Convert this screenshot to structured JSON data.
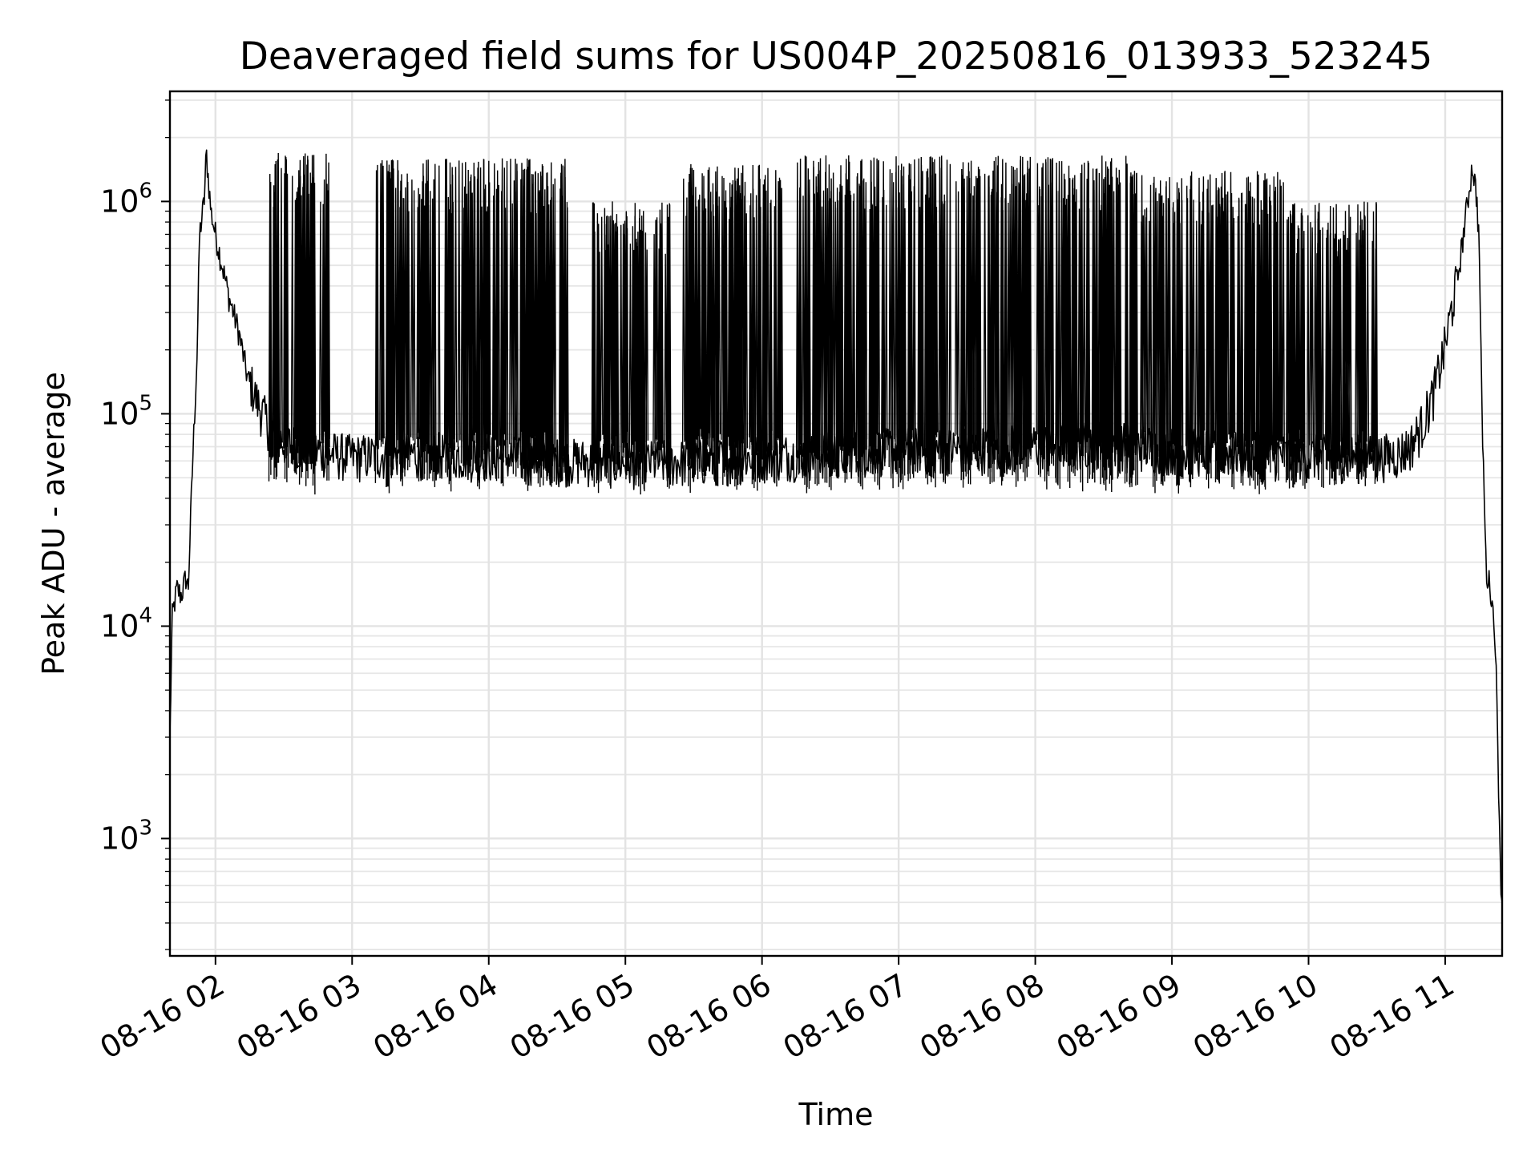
{
  "chart_data": {
    "type": "line",
    "title": "Deaveraged field sums for US004P_20250816_013933_523245",
    "xlabel": "Time",
    "ylabel": "Peak ADU - average",
    "yscale": "log",
    "ylim": [
      280,
      3300000
    ],
    "xlim": [
      "2025-08-16 01:40",
      "2025-08-16 11:25"
    ],
    "x_ticks": [
      "08-16 02",
      "08-16 03",
      "08-16 04",
      "08-16 05",
      "08-16 06",
      "08-16 07",
      "08-16 08",
      "08-16 09",
      "08-16 10",
      "08-16 11"
    ],
    "y_ticks": [
      {
        "base": "10",
        "exp": "3",
        "value": 1000
      },
      {
        "base": "10",
        "exp": "4",
        "value": 10000
      },
      {
        "base": "10",
        "exp": "5",
        "value": 100000
      },
      {
        "base": "10",
        "exp": "6",
        "value": 1000000
      }
    ],
    "grid": "both",
    "series": [
      {
        "color": "#000000",
        "x": [
          "2025-08-16 01:40",
          "2025-08-16 01:41",
          "2025-08-16 01:43",
          "2025-08-16 01:45",
          "2025-08-16 01:47",
          "2025-08-16 01:48",
          "2025-08-16 01:50",
          "2025-08-16 01:52",
          "2025-08-16 01:53",
          "2025-08-16 01:55",
          "2025-08-16 01:56",
          "2025-08-16 01:58",
          "2025-08-16 02:00",
          "2025-08-16 02:03",
          "2025-08-16 02:06",
          "2025-08-16 02:10",
          "2025-08-16 02:14",
          "2025-08-16 02:18",
          "2025-08-16 02:22",
          "2025-08-16 02:26",
          "2025-08-16 02:30",
          "2025-08-16 02:40",
          "2025-08-16 03:00",
          "2025-08-16 03:30",
          "2025-08-16 04:00",
          "2025-08-16 04:30",
          "2025-08-16 05:00",
          "2025-08-16 05:30",
          "2025-08-16 06:00",
          "2025-08-16 06:30",
          "2025-08-16 07:00",
          "2025-08-16 07:30",
          "2025-08-16 08:00",
          "2025-08-16 08:30",
          "2025-08-16 09:00",
          "2025-08-16 09:30",
          "2025-08-16 10:00",
          "2025-08-16 10:30",
          "2025-08-16 10:40",
          "2025-08-16 10:45",
          "2025-08-16 10:50",
          "2025-08-16 10:55",
          "2025-08-16 11:00",
          "2025-08-16 11:05",
          "2025-08-16 11:08",
          "2025-08-16 11:12",
          "2025-08-16 11:14",
          "2025-08-16 11:15",
          "2025-08-16 11:16",
          "2025-08-16 11:18",
          "2025-08-16 11:20",
          "2025-08-16 11:22",
          "2025-08-16 11:24",
          "2025-08-16 11:25"
        ],
        "y": [
          3000,
          11000,
          15000,
          14000,
          17000,
          15000,
          60000,
          200000,
          700000,
          1000000,
          1700000,
          900000,
          700000,
          500000,
          350000,
          250000,
          150000,
          110000,
          90000,
          75000,
          70000,
          65000,
          60000,
          62000,
          60000,
          58000,
          56000,
          57000,
          60000,
          62000,
          65000,
          65000,
          68000,
          70000,
          65000,
          62000,
          60000,
          60000,
          62000,
          68000,
          85000,
          120000,
          200000,
          400000,
          700000,
          1500000,
          1000000,
          600000,
          120000,
          18000,
          15000,
          9000,
          1000,
          400
        ]
      }
    ],
    "spikes": {
      "color": "#000000",
      "ranges": [
        {
          "start": "2025-08-16 02:23",
          "end": "2025-08-16 02:50",
          "peak": 1700000
        },
        {
          "start": "2025-08-16 03:10",
          "end": "2025-08-16 04:35",
          "peak": 1600000
        },
        {
          "start": "2025-08-16 04:45",
          "end": "2025-08-16 05:20",
          "peak": 1000000
        },
        {
          "start": "2025-08-16 05:25",
          "end": "2025-08-16 06:10",
          "peak": 1500000
        },
        {
          "start": "2025-08-16 06:15",
          "end": "2025-08-16 08:40",
          "peak": 1650000
        },
        {
          "start": "2025-08-16 08:40",
          "end": "2025-08-16 09:50",
          "peak": 1400000
        },
        {
          "start": "2025-08-16 09:50",
          "end": "2025-08-16 10:30",
          "peak": 1000000
        }
      ],
      "low_band": [
        45000,
        80000
      ]
    }
  }
}
